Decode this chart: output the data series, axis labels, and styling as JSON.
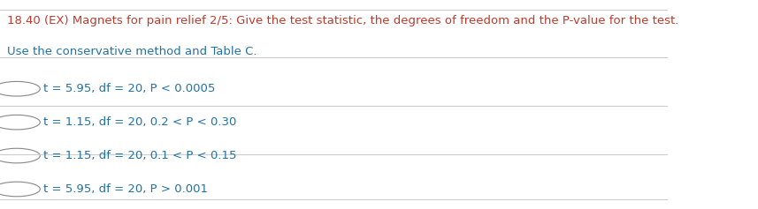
{
  "title_line1": "18.40 (EX) Magnets for pain relief 2/5: Give the test statistic, the degrees of freedom and the P-value for the test.",
  "title_line2": "Use the conservative method and Table C.",
  "title_color": "#c0392b",
  "title_color2": "#2471a3",
  "options": [
    "t = 5.95, df = 20, P < 0.0005",
    "t = 1.15, df = 20, 0.2 < P < 0.30",
    "t = 1.15, df = 20, 0.1 < P < 0.15",
    "t = 5.95, df = 20, P > 0.001"
  ],
  "option_color": "#2471a3",
  "bg_color": "#ffffff",
  "line_color": "#cccccc",
  "font_size_title": 9.5,
  "font_size_option": 9.5
}
